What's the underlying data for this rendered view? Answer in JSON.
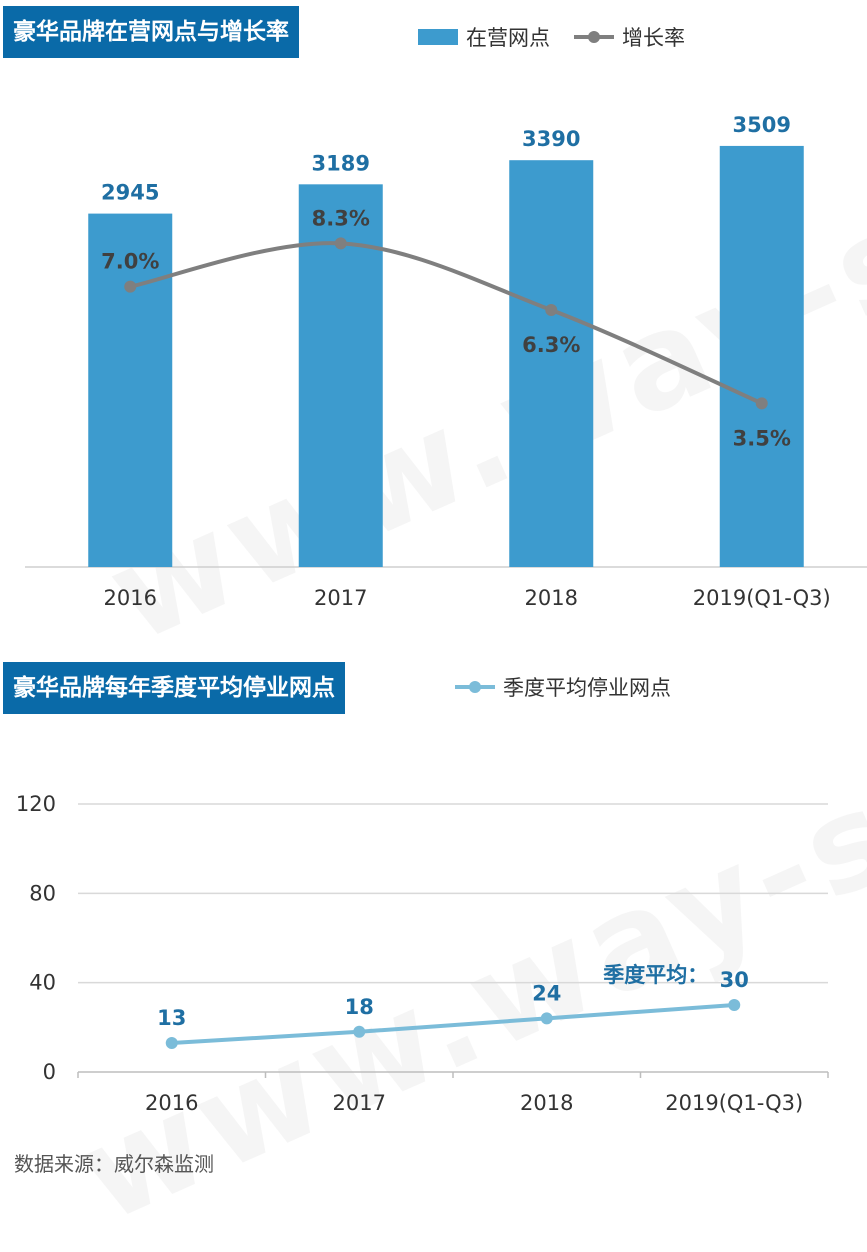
{
  "chart_data": [
    {
      "type": "bar",
      "title": "豪华品牌在营网点与增长率",
      "categories": [
        "2016",
        "2017",
        "2018",
        "2019(Q1-Q3)"
      ],
      "series": [
        {
          "name": "在营网点",
          "type": "bar",
          "values": [
            2945,
            3189,
            3390,
            3509
          ],
          "value_labels": [
            "2945",
            "3189",
            "3390",
            "3509"
          ]
        },
        {
          "name": "增长率",
          "type": "line",
          "values": [
            7.0,
            8.3,
            6.3,
            3.5
          ],
          "value_labels": [
            "7.0%",
            "8.3%",
            "6.3%",
            "3.5%"
          ]
        }
      ],
      "ylim": [
        0,
        4000
      ],
      "ylim_secondary": [
        0,
        12
      ],
      "legend": "top",
      "colors": {
        "bar": "#3d9bce",
        "line": "#7f7f7f"
      }
    },
    {
      "type": "line",
      "title": "豪华品牌每年季度平均停业网点",
      "categories": [
        "2016",
        "2017",
        "2018",
        "2019(Q1-Q3)"
      ],
      "series": [
        {
          "name": "季度平均停业网点",
          "values": [
            13,
            18,
            24,
            30
          ],
          "value_labels": [
            "13",
            "18",
            "24",
            "30"
          ]
        }
      ],
      "annotation": "季度平均：",
      "yticks": [
        "0",
        "40",
        "80",
        "120"
      ],
      "ylim": [
        0,
        120
      ],
      "grid": true,
      "legend": "top",
      "colors": {
        "line": "#7bbcd9"
      }
    }
  ],
  "watermark": "www.way-s.cn",
  "source": "数据来源：威尔森监测"
}
